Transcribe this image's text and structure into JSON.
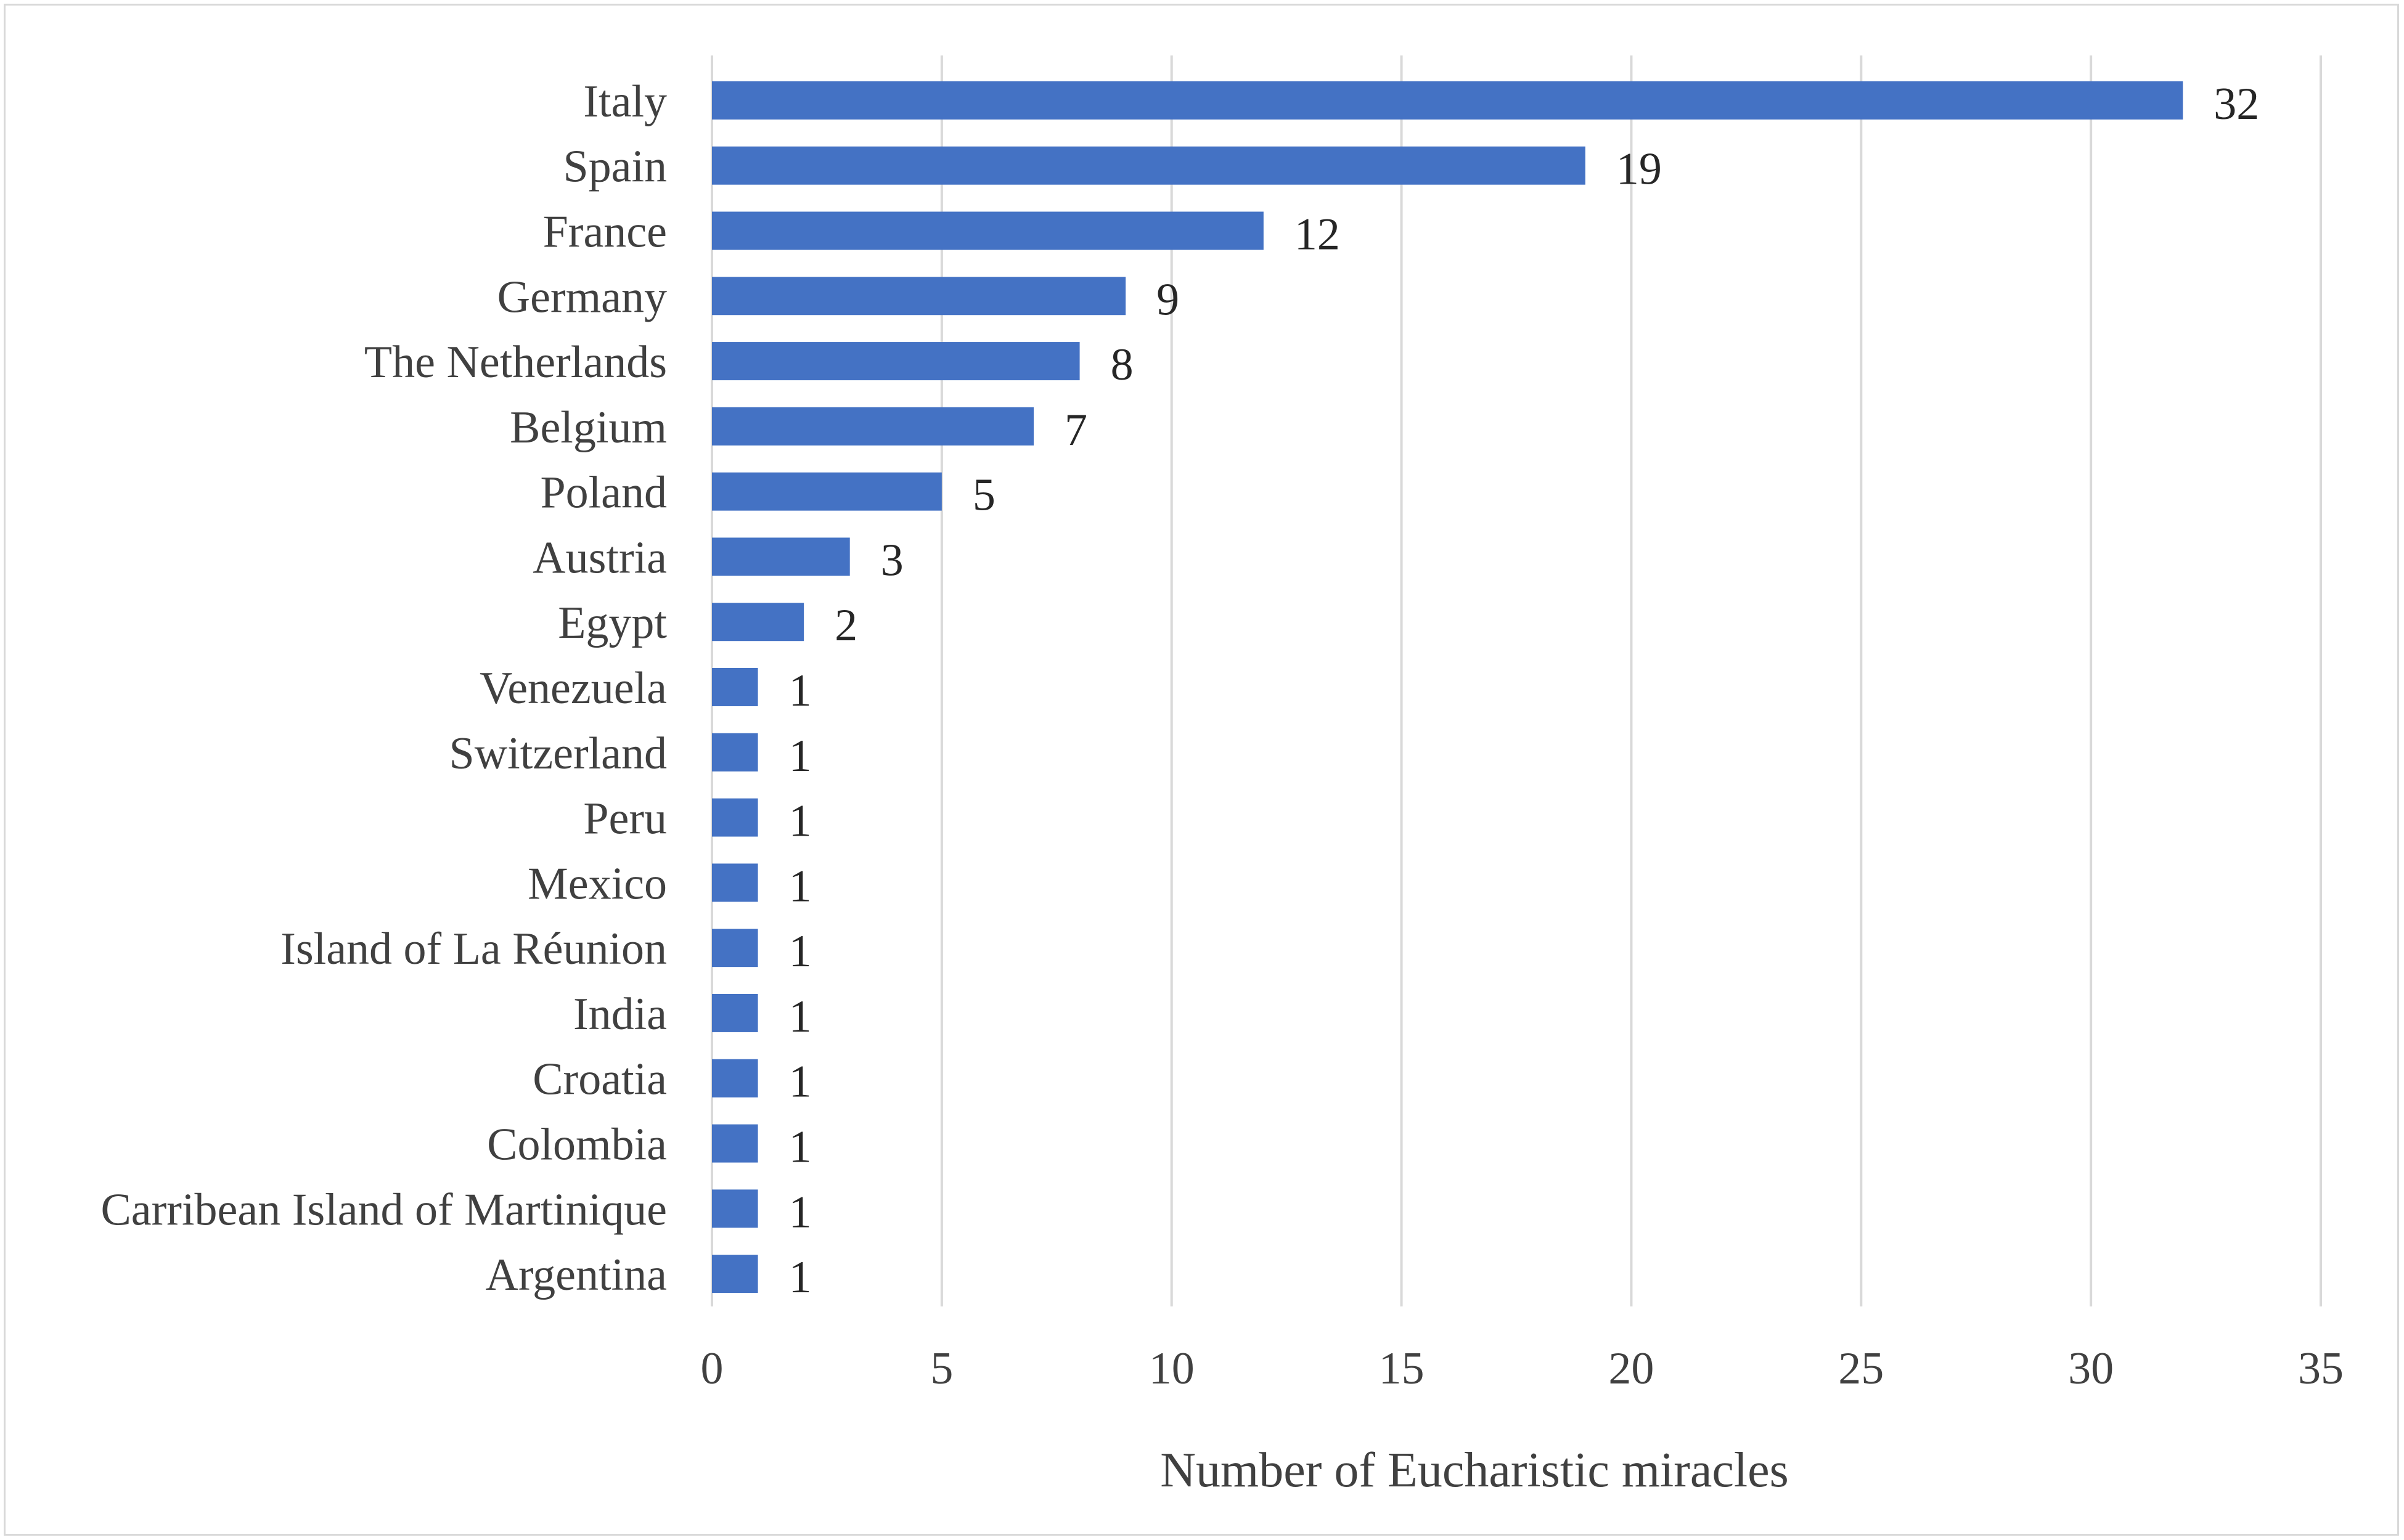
{
  "chart_data": {
    "type": "bar",
    "orientation": "horizontal",
    "categories": [
      "Italy",
      "Spain",
      "France",
      "Germany",
      "The Netherlands",
      "Belgium",
      "Poland",
      "Austria",
      "Egypt",
      "Venezuela",
      "Switzerland",
      "Peru",
      "Mexico",
      "Island of La Réunion",
      "India",
      "Croatia",
      "Colombia",
      "Carribean Island of Martinique",
      "Argentina"
    ],
    "values": [
      32,
      19,
      12,
      9,
      8,
      7,
      5,
      3,
      2,
      1,
      1,
      1,
      1,
      1,
      1,
      1,
      1,
      1,
      1
    ],
    "xlabel": "Number of Eucharistic miracles",
    "ylabel": "",
    "xlim": [
      0,
      35
    ],
    "xticks": [
      0,
      5,
      10,
      15,
      20,
      25,
      30,
      35
    ],
    "grid": "vertical",
    "data_labels": true,
    "bar_color": "#4472C4"
  }
}
